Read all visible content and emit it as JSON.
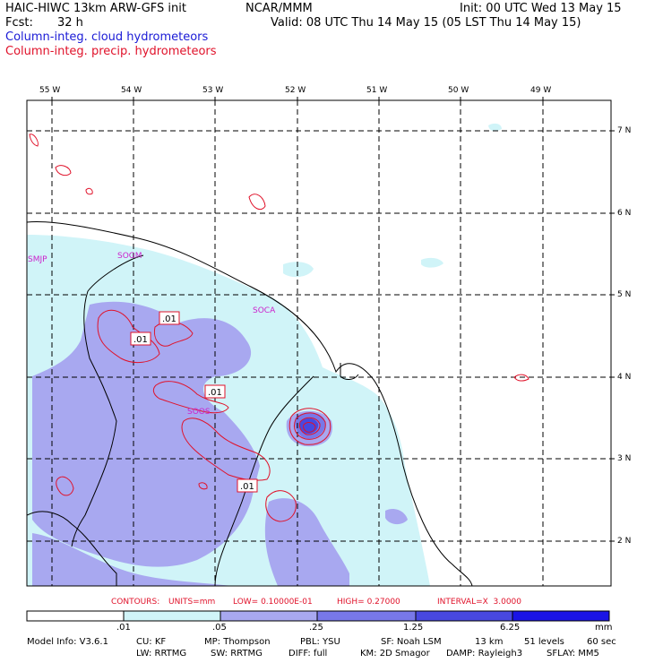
{
  "header": {
    "model_title": "HAIC-HIWC 13km ARW-GFS init",
    "org": "NCAR/MMM",
    "init_time": "Init: 00 UTC Wed 13 May 15",
    "fcst_label": "Fcst:",
    "fcst_value": "32 h",
    "valid_time": "Valid: 08 UTC Thu 14 May 15 (05 LST Thu 14 May 15)",
    "field_cloud": "Column-integ. cloud hydrometeors",
    "field_precip": "Column-integ. precip. hydrometeors"
  },
  "map": {
    "lon_labels": [
      "55 W",
      "54 W",
      "53 W",
      "52 W",
      "51 W",
      "50 W",
      "49 W"
    ],
    "lat_labels": [
      "7 N",
      "6 N",
      "5 N",
      "4 N",
      "3 N",
      "2 N"
    ],
    "stations": [
      "SMJP",
      "SOGM",
      "SOCA",
      "SOOS"
    ],
    "contour_labels": [
      ".01",
      ".01",
      ".01",
      ".01"
    ]
  },
  "contours_line": {
    "label": "CONTOURS:",
    "units": "UNITS=mm",
    "low": "LOW= 0.10000E-01",
    "high": "HIGH= 0.27000",
    "interval": "INTERVAL=X  3.0000"
  },
  "colorbar": {
    "ticks": [
      ".01",
      ".05",
      ".25",
      "1.25",
      "6.25"
    ],
    "unit": "mm",
    "colors": [
      "#ffffff",
      "#d0f4f8",
      "#a8a8f0",
      "#7878e8",
      "#4848e0",
      "#1a14e6"
    ]
  },
  "footer": {
    "line1": [
      "Model Info: V3.6.1",
      "CU: KF",
      "MP: Thompson",
      "PBL: YSU",
      "SF: Noah LSM",
      "13 km",
      "51 levels",
      "60 sec"
    ],
    "line2": [
      "LW: RRTMG",
      "SW: RRTMG",
      "DIFF: full",
      "KM: 2D Smagor",
      "DAMP: Rayleigh3",
      "SFLAY: MM5"
    ]
  }
}
